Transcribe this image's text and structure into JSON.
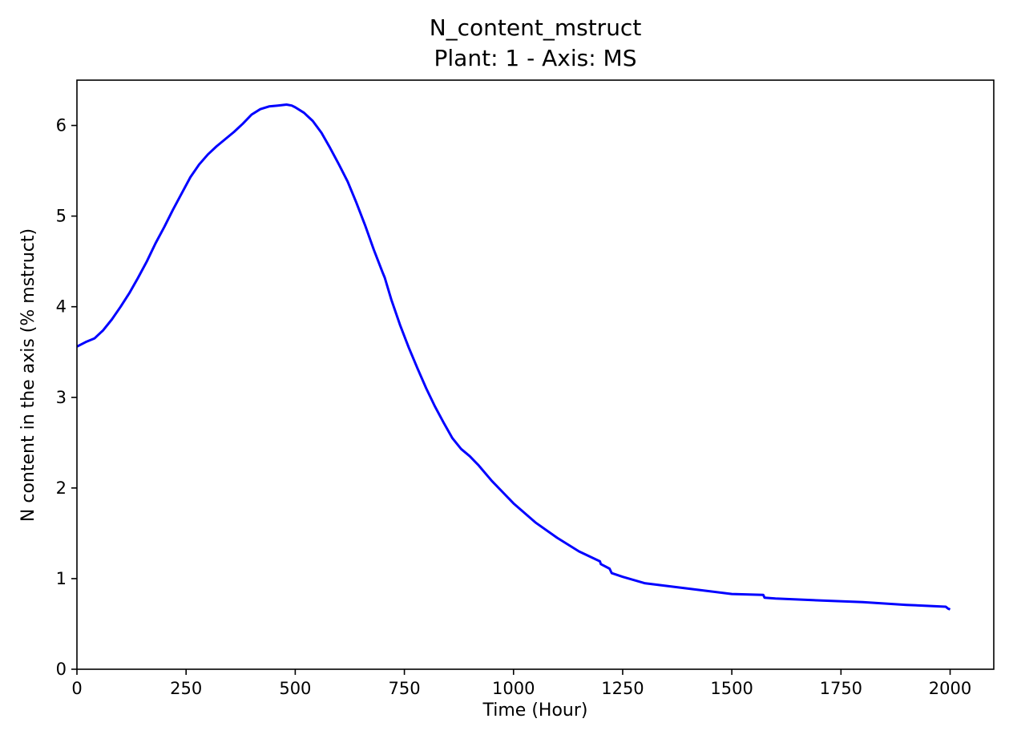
{
  "chart_data": {
    "type": "line",
    "title": "N_content_mstruct",
    "subtitle": "Plant: 1 - Axis: MS",
    "xlabel": "Time (Hour)",
    "ylabel": "N content in the axis (% mstruct)",
    "xlim": [
      0,
      2100
    ],
    "ylim": [
      0,
      6.5
    ],
    "xticks": [
      0,
      250,
      500,
      750,
      1000,
      1250,
      1500,
      1750,
      2000
    ],
    "yticks": [
      0,
      1,
      2,
      3,
      4,
      5,
      6
    ],
    "grid": false,
    "series": [
      {
        "color": "#0000ff",
        "x": [
          0,
          20,
          40,
          60,
          80,
          100,
          120,
          140,
          160,
          180,
          200,
          220,
          240,
          260,
          280,
          300,
          320,
          340,
          360,
          380,
          400,
          420,
          440,
          460,
          480,
          492,
          500,
          520,
          540,
          560,
          580,
          600,
          620,
          640,
          660,
          680,
          700,
          705,
          720,
          740,
          760,
          780,
          800,
          820,
          840,
          860,
          880,
          900,
          910,
          920,
          950,
          1000,
          1050,
          1100,
          1150,
          1198,
          1200,
          1220,
          1225,
          1250,
          1300,
          1350,
          1400,
          1450,
          1500,
          1572,
          1575,
          1600,
          1700,
          1800,
          1900,
          1990,
          1995,
          2000
        ],
        "y": [
          3.56,
          3.61,
          3.65,
          3.74,
          3.86,
          4.0,
          4.15,
          4.32,
          4.5,
          4.7,
          4.88,
          5.07,
          5.25,
          5.43,
          5.57,
          5.68,
          5.77,
          5.85,
          5.93,
          6.02,
          6.12,
          6.18,
          6.21,
          6.22,
          6.23,
          6.22,
          6.2,
          6.14,
          6.05,
          5.92,
          5.75,
          5.57,
          5.38,
          5.15,
          4.9,
          4.63,
          4.38,
          4.32,
          4.08,
          3.8,
          3.55,
          3.32,
          3.1,
          2.9,
          2.72,
          2.55,
          2.43,
          2.35,
          2.3,
          2.25,
          2.08,
          1.83,
          1.62,
          1.45,
          1.3,
          1.19,
          1.16,
          1.11,
          1.06,
          1.02,
          0.95,
          0.92,
          0.89,
          0.86,
          0.83,
          0.82,
          0.79,
          0.78,
          0.76,
          0.74,
          0.71,
          0.69,
          0.67,
          0.66
        ]
      }
    ]
  }
}
